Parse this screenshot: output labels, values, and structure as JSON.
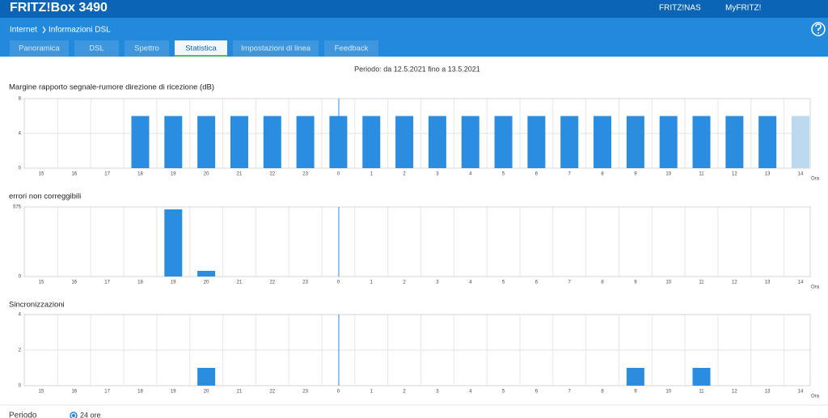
{
  "header": {
    "title": "FRITZ!Box 3490",
    "links": [
      "FRITZ!NAS",
      "MyFRITZ!"
    ]
  },
  "breadcrumb": [
    "Internet",
    "Informazioni DSL"
  ],
  "tabs": [
    "Panoramica",
    "DSL",
    "Spettro",
    "Statistica",
    "Impostazioni di linea",
    "Feedback"
  ],
  "active_tab": 3,
  "period_text": "Periodo: da 12.5.2021 fino a 13.5.2021",
  "chart_data": [
    {
      "type": "bar",
      "title": "Margine rapporto segnale-rumore direzione di ricezione (dB)",
      "categories": [
        "15",
        "16",
        "17",
        "18",
        "19",
        "20",
        "21",
        "22",
        "23",
        "0",
        "1",
        "2",
        "3",
        "4",
        "5",
        "6",
        "7",
        "8",
        "9",
        "10",
        "11",
        "12",
        "13",
        "14"
      ],
      "values": [
        null,
        null,
        null,
        6,
        6,
        6,
        6,
        6,
        6,
        6,
        6,
        6,
        6,
        6,
        6,
        6,
        6,
        6,
        6,
        6,
        6,
        6,
        6,
        6
      ],
      "colors": [
        "#2a8ddf",
        "#2a8ddf",
        "#2a8ddf",
        "#2a8ddf",
        "#2a8ddf",
        "#2a8ddf",
        "#2a8ddf",
        "#2a8ddf",
        "#2a8ddf",
        "#2a8ddf",
        "#2a8ddf",
        "#2a8ddf",
        "#2a8ddf",
        "#2a8ddf",
        "#2a8ddf",
        "#2a8ddf",
        "#2a8ddf",
        "#2a8ddf",
        "#2a8ddf",
        "#2a8ddf",
        "#2a8ddf",
        "#2a8ddf",
        "#2a8ddf",
        "#bcd9f2"
      ],
      "x_label": "Ora",
      "ylim": [
        0,
        8
      ],
      "yticks": [
        0,
        4,
        8
      ],
      "grid": true
    },
    {
      "type": "bar",
      "title": "errori non correggibili",
      "categories": [
        "15",
        "16",
        "17",
        "18",
        "19",
        "20",
        "21",
        "22",
        "23",
        "0",
        "1",
        "2",
        "3",
        "4",
        "5",
        "6",
        "7",
        "8",
        "9",
        "10",
        "11",
        "12",
        "13",
        "14"
      ],
      "values": [
        0,
        0,
        0,
        0,
        555,
        47,
        0,
        0,
        0,
        0,
        0,
        0,
        0,
        0,
        0,
        0,
        0,
        0,
        0,
        0,
        0,
        0,
        0,
        0
      ],
      "color": "#2a8ddf",
      "x_label": "Ora",
      "ylim": [
        0,
        575
      ],
      "yticks": [
        0,
        575
      ],
      "grid": true
    },
    {
      "type": "bar",
      "title": "Sincronizzazioni",
      "categories": [
        "15",
        "16",
        "17",
        "18",
        "19",
        "20",
        "21",
        "22",
        "23",
        "0",
        "1",
        "2",
        "3",
        "4",
        "5",
        "6",
        "7",
        "8",
        "9",
        "10",
        "11",
        "12",
        "13",
        "14"
      ],
      "values": [
        0,
        0,
        0,
        0,
        0,
        1,
        0,
        0,
        0,
        0,
        0,
        0,
        0,
        0,
        0,
        0,
        0,
        0,
        1,
        0,
        1,
        0,
        0,
        0
      ],
      "color": "#2a8ddf",
      "x_label": "Ora",
      "ylim": [
        0,
        4
      ],
      "yticks": [
        0,
        2,
        4
      ],
      "grid": true
    }
  ],
  "footer": {
    "label": "Periodo",
    "option": "24 ore"
  }
}
